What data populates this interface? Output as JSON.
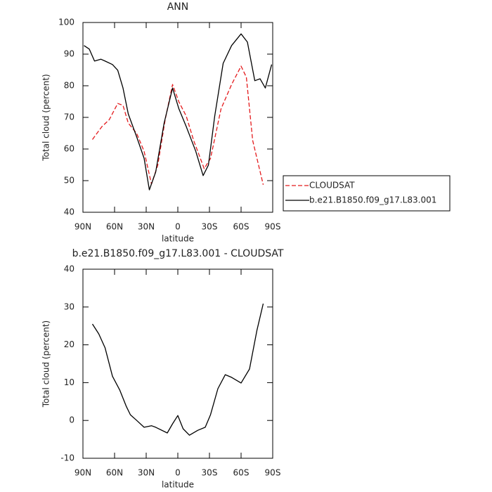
{
  "chart_data": [
    {
      "type": "line",
      "title": "ANN",
      "xlabel": "latitude",
      "ylabel": "Total cloud (percent)",
      "xlim": [
        90,
        -90
      ],
      "xticks": [
        {
          "value": 90,
          "label": "90N"
        },
        {
          "value": 60,
          "label": "60N"
        },
        {
          "value": 30,
          "label": "30N"
        },
        0,
        {
          "value": -30,
          "label": "30S"
        },
        {
          "value": -60,
          "label": "60S"
        },
        {
          "value": -90,
          "label": "90S"
        }
      ],
      "ylim": [
        40,
        100
      ],
      "yticks": [
        40,
        50,
        60,
        70,
        80,
        90,
        100
      ],
      "legend": "outside right",
      "series": [
        {
          "name": "CLOUDSAT",
          "color": "#e41a1c",
          "linestyle": "dashed",
          "x": [
            81,
            72,
            65,
            57,
            52,
            47,
            39,
            32,
            25,
            19,
            12,
            5,
            -1,
            -8,
            -15,
            -25,
            -31,
            -41,
            -51,
            -60,
            -65,
            -71,
            -81
          ],
          "values": [
            63,
            67.1,
            69.3,
            74.4,
            73.8,
            68.2,
            64.9,
            59.3,
            48.9,
            54.9,
            69.3,
            80.4,
            74.9,
            70.4,
            62.7,
            53.8,
            57,
            72.7,
            80.4,
            86.2,
            82.7,
            62.7,
            48.7
          ]
        },
        {
          "name": "b.e21.B1850.f09_g17.L83.001",
          "color": "#000000",
          "linestyle": "solid",
          "x": [
            89,
            84,
            79,
            73,
            69,
            62,
            57,
            52,
            47,
            39,
            32,
            27,
            21,
            13,
            5,
            -1,
            -8,
            -17,
            -24,
            -29,
            -35,
            -43,
            -51,
            -60,
            -66,
            -73,
            -78,
            -83,
            -89
          ],
          "values": [
            92.7,
            91.6,
            87.8,
            88.4,
            87.8,
            86.7,
            84.9,
            79.3,
            71.1,
            63.8,
            57.1,
            47.1,
            52.7,
            68.2,
            79.3,
            72.7,
            67.1,
            59.3,
            51.6,
            54.9,
            70.4,
            87.1,
            92.7,
            96.4,
            93.8,
            81.6,
            82.2,
            79.3,
            86.7
          ]
        }
      ]
    },
    {
      "type": "line",
      "title": "b.e21.B1850.f09_g17.L83.001 - CLOUDSAT",
      "xlabel": "latitude",
      "ylabel": "Total cloud (percent)",
      "xlim": [
        90,
        -90
      ],
      "xticks": [
        {
          "value": 90,
          "label": "90N"
        },
        {
          "value": 60,
          "label": "60N"
        },
        {
          "value": 30,
          "label": "30N"
        },
        0,
        {
          "value": -30,
          "label": "30S"
        },
        {
          "value": -60,
          "label": "60S"
        },
        {
          "value": -90,
          "label": "90S"
        }
      ],
      "ylim": [
        -10,
        40
      ],
      "yticks": [
        -10,
        0,
        10,
        20,
        30,
        40
      ],
      "series": [
        {
          "color": "#000000",
          "linestyle": "solid",
          "x": [
            81,
            75,
            69,
            62,
            55,
            49,
            45,
            39,
            32,
            25,
            21,
            10,
            5,
            0,
            -5,
            -11,
            -19,
            -26,
            -31,
            -38,
            -45,
            -51,
            -60,
            -68,
            -75,
            -81
          ],
          "values": [
            25.5,
            22.9,
            19.2,
            11.7,
            8,
            3.8,
            1.5,
            0,
            -1.8,
            -1.4,
            -1.8,
            -3.3,
            -0.9,
            1.3,
            -2.2,
            -3.9,
            -2.6,
            -1.8,
            1.5,
            8.4,
            12.1,
            11.4,
            9.9,
            13.6,
            23.8,
            30.9
          ]
        }
      ]
    }
  ]
}
